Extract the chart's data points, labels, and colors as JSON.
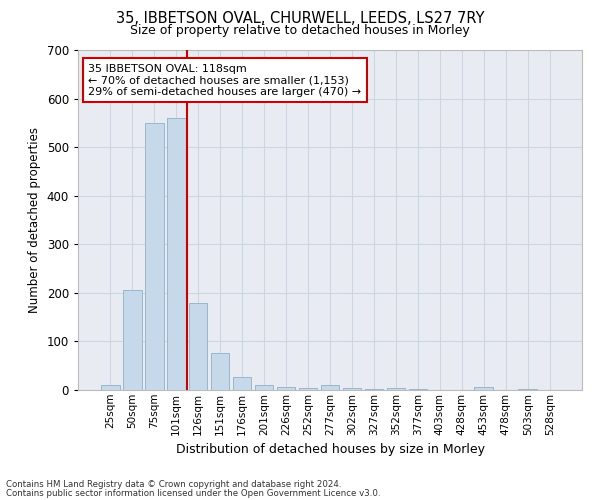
{
  "title1": "35, IBBETSON OVAL, CHURWELL, LEEDS, LS27 7RY",
  "title2": "Size of property relative to detached houses in Morley",
  "xlabel": "Distribution of detached houses by size in Morley",
  "ylabel": "Number of detached properties",
  "footnote1": "Contains HM Land Registry data © Crown copyright and database right 2024.",
  "footnote2": "Contains public sector information licensed under the Open Government Licence v3.0.",
  "annotation_line1": "35 IBBETSON OVAL: 118sqm",
  "annotation_line2": "← 70% of detached houses are smaller (1,153)",
  "annotation_line3": "29% of semi-detached houses are larger (470) →",
  "bar_labels": [
    "25sqm",
    "50sqm",
    "75sqm",
    "101sqm",
    "126sqm",
    "151sqm",
    "176sqm",
    "201sqm",
    "226sqm",
    "252sqm",
    "277sqm",
    "302sqm",
    "327sqm",
    "352sqm",
    "377sqm",
    "403sqm",
    "428sqm",
    "453sqm",
    "478sqm",
    "503sqm",
    "528sqm"
  ],
  "bar_values": [
    10,
    205,
    550,
    560,
    180,
    77,
    27,
    10,
    7,
    5,
    10,
    4,
    3,
    4,
    2,
    0,
    0,
    6,
    0,
    2,
    0
  ],
  "bar_color": "#c6d9ea",
  "bar_edgecolor": "#9ab6cc",
  "marker_index": 3,
  "marker_color": "#cc0000",
  "ylim": [
    0,
    700
  ],
  "yticks": [
    0,
    100,
    200,
    300,
    400,
    500,
    600,
    700
  ],
  "grid_color": "#cdd5e0",
  "bg_color": "#e8ecf2",
  "annotation_box_edgecolor": "#cc0000",
  "annotation_box_facecolor": "#ffffff"
}
